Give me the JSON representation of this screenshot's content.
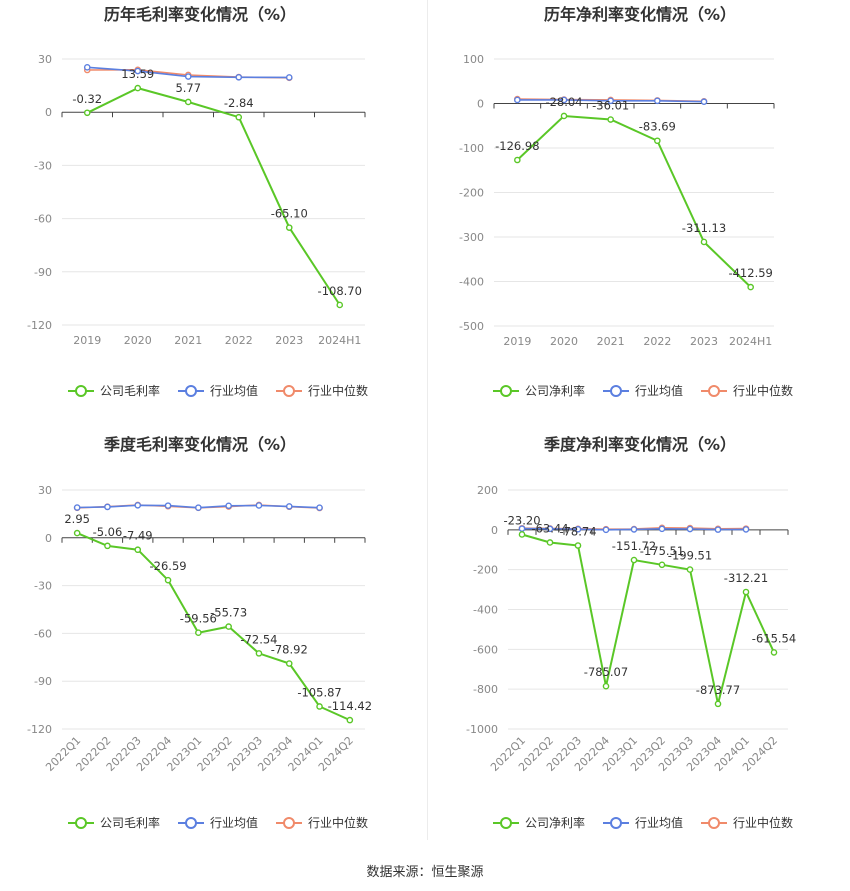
{
  "source_text": "数据来源：恒生聚源",
  "colors": {
    "company": "#5ac727",
    "avg": "#5b7fe0",
    "median": "#f08a6a",
    "grid": "#e6e6e6",
    "axis": "#444444"
  },
  "chart_data": [
    {
      "type": "line",
      "title": "历年毛利率变化情况（%）",
      "categories": [
        "2019",
        "2020",
        "2021",
        "2022",
        "2023",
        "2024H1"
      ],
      "yticks": [
        30,
        0,
        -30,
        -60,
        -90,
        -120
      ],
      "ylim": [
        -120,
        30
      ],
      "rotate_x": false,
      "series": [
        {
          "name": "公司毛利率",
          "values": [
            -0.32,
            13.59,
            5.77,
            -2.84,
            -65.1,
            -108.7
          ],
          "labels": [
            "-0.32",
            "13.59",
            "5.77",
            "-2.84",
            "-65.10",
            "-108.70"
          ]
        },
        {
          "name": "行业均值",
          "values": [
            25.3,
            23.2,
            20.1,
            19.7,
            19.6,
            null
          ]
        },
        {
          "name": "行业中位数",
          "values": [
            23.8,
            23.9,
            21.0,
            19.8,
            19.4,
            null
          ]
        }
      ]
    },
    {
      "type": "line",
      "title": "历年净利率变化情况（%）",
      "categories": [
        "2019",
        "2020",
        "2021",
        "2022",
        "2023",
        "2024H1"
      ],
      "yticks": [
        100,
        0,
        -100,
        -200,
        -300,
        -400,
        -500
      ],
      "ylim": [
        -500,
        100
      ],
      "rotate_x": false,
      "series": [
        {
          "name": "公司净利率",
          "values": [
            -126.98,
            -28.04,
            -36.01,
            -83.69,
            -311.13,
            -412.59
          ],
          "labels": [
            "-126.98",
            "-28.04",
            "-36.01",
            "-83.69",
            "-311.13",
            "-412.59"
          ]
        },
        {
          "name": "行业均值",
          "values": [
            8,
            8,
            6,
            6,
            4,
            null
          ]
        },
        {
          "name": "行业中位数",
          "values": [
            10,
            9,
            8,
            7,
            5,
            null
          ]
        }
      ]
    },
    {
      "type": "line",
      "title": "季度毛利率变化情况（%）",
      "categories": [
        "2022Q1",
        "2022Q2",
        "2022Q3",
        "2022Q4",
        "2023Q1",
        "2023Q2",
        "2023Q3",
        "2023Q4",
        "2024Q1",
        "2024Q2"
      ],
      "yticks": [
        30,
        0,
        -30,
        -60,
        -90,
        -120
      ],
      "ylim": [
        -120,
        30
      ],
      "rotate_x": true,
      "series": [
        {
          "name": "公司毛利率",
          "values": [
            2.95,
            -5.06,
            -7.49,
            -26.59,
            -59.56,
            -55.73,
            -72.54,
            -78.92,
            -105.87,
            -114.42
          ],
          "labels": [
            "2.95",
            "-5.06",
            "-7.49",
            "-26.59",
            "-59.56",
            "-55.73",
            "-72.54",
            "-78.92",
            "-105.87",
            "-114.42"
          ]
        },
        {
          "name": "行业均值",
          "values": [
            19.0,
            19.4,
            20.4,
            20.2,
            18.9,
            20.1,
            20.3,
            19.7,
            18.9,
            null
          ]
        },
        {
          "name": "行业中位数",
          "values": [
            18.8,
            19.5,
            20.6,
            19.8,
            18.8,
            19.6,
            20.6,
            19.5,
            18.7,
            null
          ]
        }
      ]
    },
    {
      "type": "line",
      "title": "季度净利率变化情况（%）",
      "categories": [
        "2022Q1",
        "2022Q2",
        "2022Q3",
        "2022Q4",
        "2023Q1",
        "2023Q2",
        "2023Q3",
        "2023Q4",
        "2024Q1",
        "2024Q2"
      ],
      "yticks": [
        200,
        0,
        -200,
        -400,
        -600,
        -800,
        -1000
      ],
      "ylim": [
        -1000,
        200
      ],
      "rotate_x": true,
      "series": [
        {
          "name": "公司净利率",
          "values": [
            -23.2,
            -63.44,
            -78.74,
            -785.07,
            -151.72,
            -175.51,
            -199.51,
            -873.77,
            -312.21,
            -615.54
          ],
          "labels": [
            "-23.20",
            "-63.44",
            "-78.74",
            "-785.07",
            "-151.72",
            "-175.51",
            "-199.51",
            "-873.77",
            "-312.21",
            "-615.54"
          ]
        },
        {
          "name": "行业均值",
          "values": [
            6,
            5,
            3,
            0,
            2,
            5,
            4,
            1,
            2,
            null
          ]
        },
        {
          "name": "行业中位数",
          "values": [
            8,
            7,
            5,
            3,
            4,
            10,
            9,
            5,
            6,
            null
          ]
        }
      ]
    }
  ]
}
